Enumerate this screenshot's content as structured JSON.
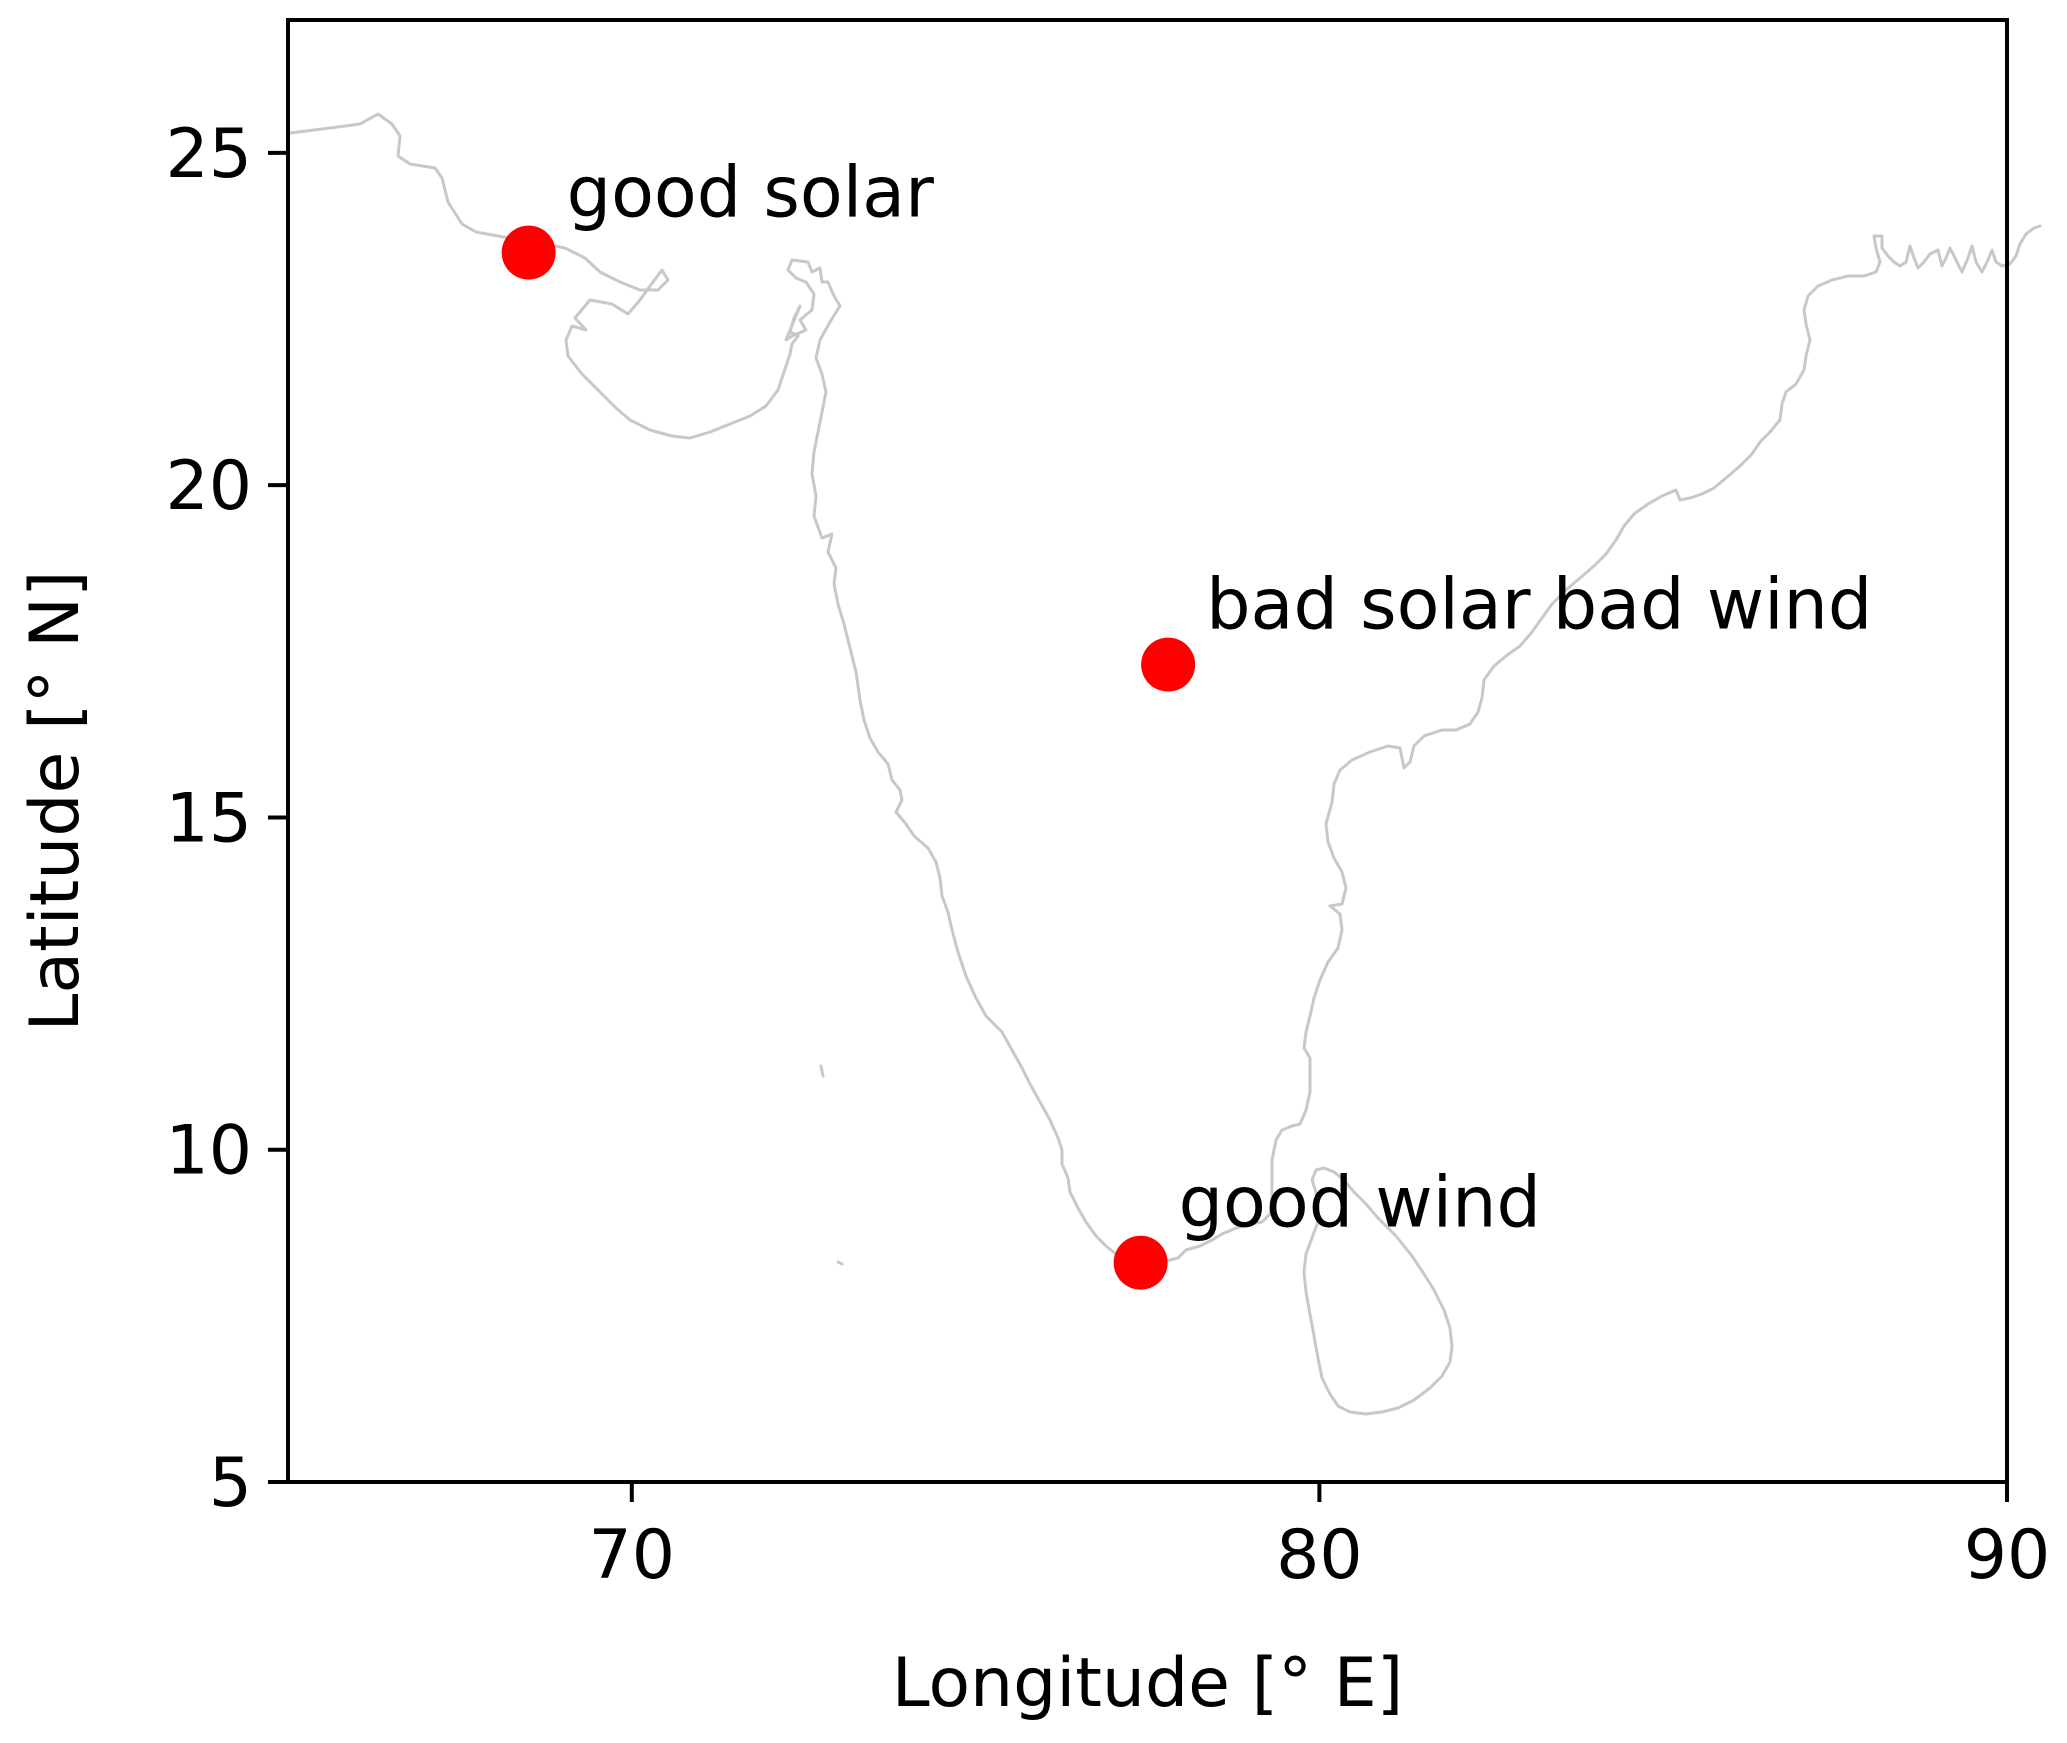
{
  "chart_data": {
    "type": "scatter",
    "title": "",
    "xlabel": "Longitude [° E]",
    "ylabel": "Latitude [° N]",
    "xlim": [
      65,
      90
    ],
    "ylim": [
      5,
      27
    ],
    "xticks": [
      70,
      80,
      90
    ],
    "yticks": [
      5,
      10,
      15,
      20,
      25
    ],
    "grid": false,
    "colors": {
      "points": "#ff0000",
      "coastline": "#c8c8c8",
      "frame": "#000000"
    },
    "points": [
      {
        "name": "good-solar",
        "label": "good solar",
        "lon": 68.5,
        "lat": 23.5
      },
      {
        "name": "bad-solar-bad-wind",
        "label": "bad solar bad wind",
        "lon": 77.8,
        "lat": 17.3
      },
      {
        "name": "good-wind",
        "label": "good wind",
        "lon": 77.4,
        "lat": 8.3
      }
    ]
  }
}
